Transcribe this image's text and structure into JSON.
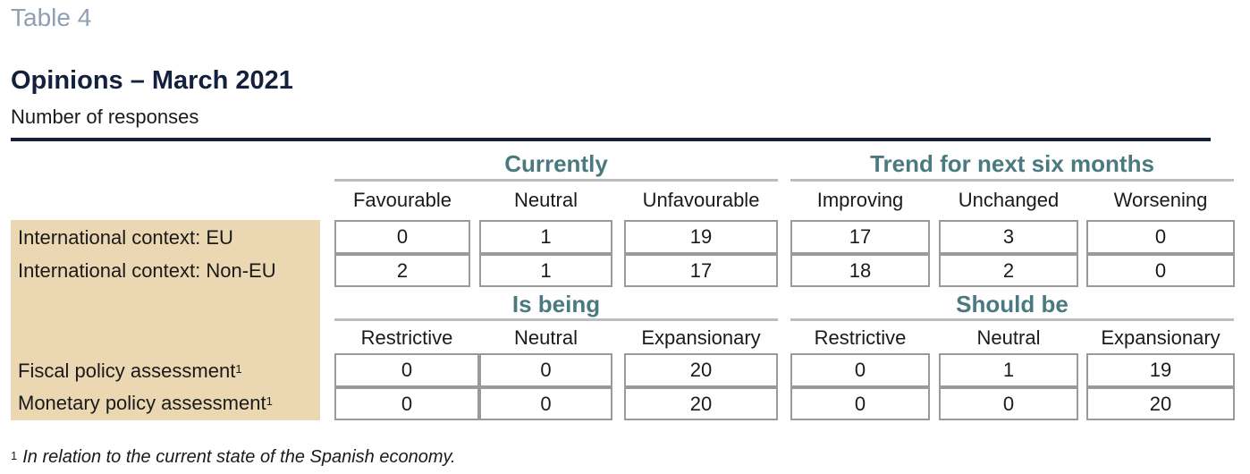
{
  "header": {
    "table_label": "Table 4",
    "title": "Opinions – March 2021",
    "subtitle": "Number of responses"
  },
  "section1": {
    "groups": [
      "Currently",
      "Trend for next six months"
    ],
    "columns": [
      "Favourable",
      "Neutral",
      "Unfavourable",
      "Improving",
      "Unchanged",
      "Worsening"
    ],
    "rows": [
      {
        "label": "International context: EU",
        "values": [
          "0",
          "1",
          "19",
          "17",
          "3",
          "0"
        ]
      },
      {
        "label": "International context: Non-EU",
        "values": [
          "2",
          "1",
          "17",
          "18",
          "2",
          "0"
        ]
      }
    ]
  },
  "section2": {
    "groups": [
      "Is being",
      "Should be"
    ],
    "columns": [
      "Restrictive",
      "Neutral",
      "Expansionary",
      "Restrictive",
      "Neutral",
      "Expansionary"
    ],
    "rows": [
      {
        "label": "Fiscal policy assessment",
        "sup": "1",
        "values": [
          "0",
          "0",
          "20",
          "0",
          "1",
          "19"
        ]
      },
      {
        "label": "Monetary policy assessment",
        "sup": "1",
        "values": [
          "0",
          "0",
          "20",
          "0",
          "0",
          "20"
        ]
      }
    ]
  },
  "footnote": {
    "mark": "1",
    "text": "In relation to the current state of the Spanish economy."
  },
  "colors": {
    "title": "#14213d",
    "table_label": "#8f9fb6",
    "group_heading": "#4a7a80",
    "label_background": "#ebd7b2",
    "cell_border": "#9a9a9a"
  }
}
